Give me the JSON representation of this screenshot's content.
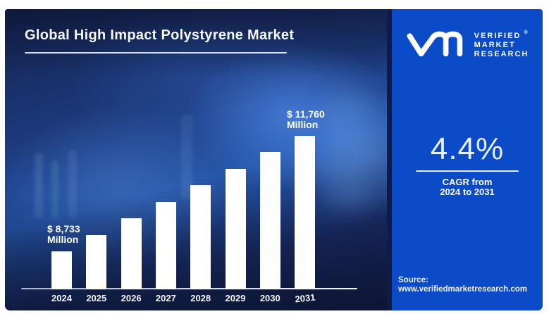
{
  "header": {
    "title": "Global High Impact Polystyrene Market"
  },
  "brand": {
    "name": "Verified Market Research",
    "line1": "VERIFIED",
    "line2": "MARKET",
    "line3": "RESEARCH",
    "registered": "®"
  },
  "stats": {
    "cagr_value": "4.4%",
    "cagr_line1": "CAGR from",
    "cagr_line2": "2024 to 2031"
  },
  "source": {
    "label": "Source:",
    "url": "www.verifiedmarketresearch.com"
  },
  "bar_labels": {
    "first_line1": "$ 8,733",
    "first_line2": "Million",
    "last_line1": "$ 11,760",
    "last_line2": "Million"
  },
  "colors": {
    "right_panel_bg": "#0b4bc8",
    "divider": "#101c47",
    "left_panel_base": "#1d3a7c",
    "bar_fill": "#ffffff",
    "text": "#ffffff"
  },
  "chart_data": {
    "type": "bar",
    "title": "Global High Impact Polystyrene Market",
    "categories": [
      "2024",
      "2025",
      "2026",
      "2027",
      "2028",
      "2029",
      "2030",
      "2031"
    ],
    "values": [
      8733,
      9165,
      9598,
      10030,
      10463,
      10895,
      11328,
      11760
    ],
    "unit": "USD Million",
    "labeled_points": [
      {
        "category": "2024",
        "value": 8733,
        "label": "$ 8,733 Million"
      },
      {
        "category": "2031",
        "value": 11760,
        "label": "$ 11,760 Million"
      }
    ],
    "cagr": "4.4%",
    "xlabel": "",
    "ylabel": "",
    "legend": false,
    "gridlines": false,
    "bar_color": "#ffffff"
  }
}
